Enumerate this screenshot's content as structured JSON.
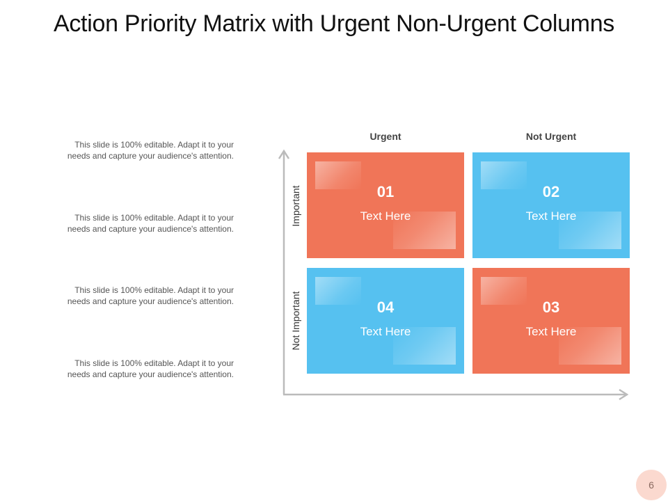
{
  "title": "Action Priority Matrix with Urgent Non-Urgent Columns",
  "descriptions": [
    {
      "line1": "This slide is 100% editable. Adapt it to your",
      "line2": "needs and capture your audience's attention."
    },
    {
      "line1": "This slide is 100% editable. Adapt it to your",
      "line2": "needs and capture your audience's attention."
    },
    {
      "line1": "This slide is 100% editable. Adapt it to your",
      "line2": "needs and capture your audience's attention."
    },
    {
      "line1": "This slide is 100% editable. Adapt it to your",
      "line2": "needs and capture your audience's attention."
    }
  ],
  "matrix": {
    "columns": [
      "Urgent",
      "Not Urgent"
    ],
    "rows": [
      "Important",
      "Not Important"
    ],
    "quadrants": [
      {
        "number": "01",
        "text": "Text Here",
        "color": "#f07558"
      },
      {
        "number": "02",
        "text": "Text Here",
        "color": "#56c1f0"
      },
      {
        "number": "04",
        "text": "Text Here",
        "color": "#56c1f0"
      },
      {
        "number": "03",
        "text": "Text Here",
        "color": "#f07558"
      }
    ],
    "axis_color": "#bbbbbb"
  },
  "page_number": "6"
}
